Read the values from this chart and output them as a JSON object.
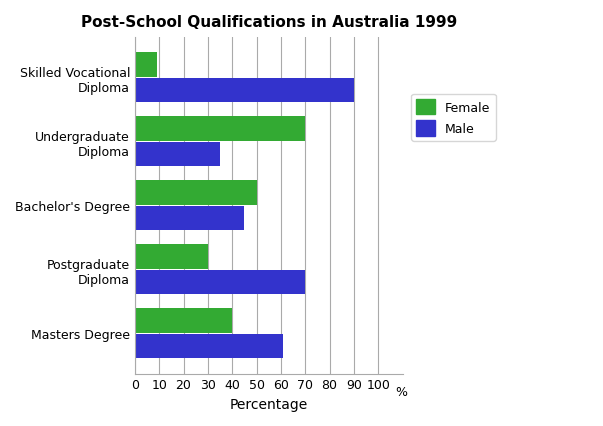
{
  "title": "Post-School Qualifications in Australia 1999",
  "categories": [
    "Skilled Vocational\nDiploma",
    "Undergraduate\nDiploma",
    "Bachelor's Degree",
    "Postgraduate\nDiploma",
    "Masters Degree"
  ],
  "female_values": [
    9,
    70,
    50,
    30,
    40
  ],
  "male_values": [
    90,
    35,
    45,
    70,
    61
  ],
  "female_color": "#33aa33",
  "male_color": "#3333cc",
  "xlabel": "Percentage",
  "xlim": [
    0,
    110
  ],
  "xticks": [
    0,
    10,
    20,
    30,
    40,
    50,
    60,
    70,
    80,
    90,
    100
  ],
  "xtick_labels": [
    "0",
    "10",
    "20",
    "30",
    "40",
    "50",
    "60",
    "70",
    "80",
    "90",
    "100"
  ],
  "x_percent_label": "%",
  "background_color": "#ffffff",
  "bar_height": 0.38,
  "bar_gap": 0.02,
  "title_fontsize": 11,
  "axis_label_fontsize": 10,
  "tick_fontsize": 9,
  "legend_fontsize": 9,
  "grid_color": "#aaaaaa",
  "grid_linewidth": 0.8
}
